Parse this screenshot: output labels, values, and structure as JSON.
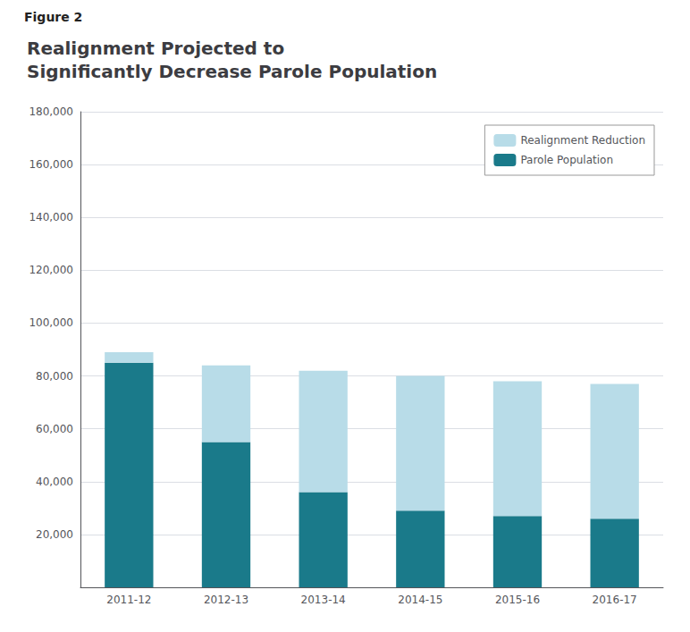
{
  "chart_data": {
    "type": "bar",
    "stacked": true,
    "title": "Realignment Projected to\nSignificantly Decrease Parole Population",
    "annotations": [
      "Figure 2"
    ],
    "categories": [
      "2011-12",
      "2012-13",
      "2013-14",
      "2014-15",
      "2015-16",
      "2016-17"
    ],
    "series": [
      {
        "name": "Parole Population",
        "color": "#1a7a8a",
        "values": [
          85000,
          55000,
          36000,
          29000,
          27000,
          26000
        ]
      },
      {
        "name": "Realignment Reduction",
        "color": "#b8dce8",
        "values": [
          4000,
          29000,
          46000,
          51000,
          51000,
          51000
        ]
      }
    ],
    "ylim": [
      0,
      180000
    ],
    "yticks": [
      {
        "value": 20000,
        "label": "20,000"
      },
      {
        "value": 40000,
        "label": "40,000"
      },
      {
        "value": 60000,
        "label": "60,000"
      },
      {
        "value": 80000,
        "label": "80,000"
      },
      {
        "value": 100000,
        "label": "100,000"
      },
      {
        "value": 120000,
        "label": "120,000"
      },
      {
        "value": 140000,
        "label": "140,000"
      },
      {
        "value": 160000,
        "label": "160,000"
      },
      {
        "value": 180000,
        "label": "180,000"
      }
    ],
    "grid": true,
    "legend": "upper right"
  }
}
